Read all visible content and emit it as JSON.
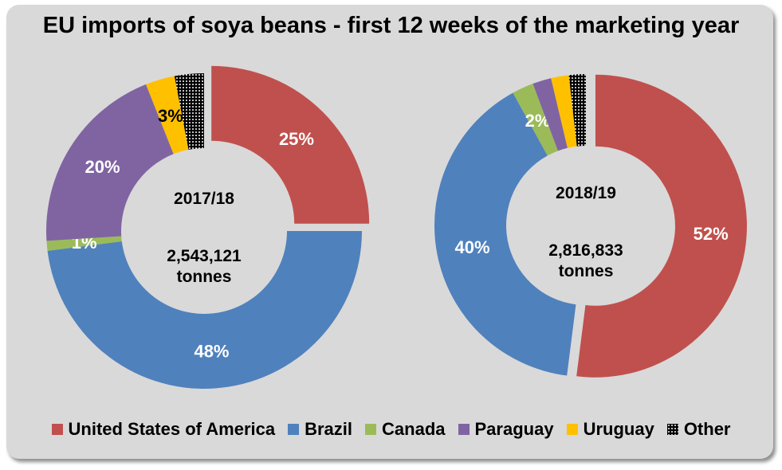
{
  "chart_data": {
    "type": "pie",
    "title": "EU imports of soya beans - first 12 weeks of the marketing year",
    "legend_position": "bottom",
    "categories": [
      "United States of America",
      "Brazil",
      "Canada",
      "Paraguay",
      "Uruguay",
      "Other"
    ],
    "colors": [
      "#c0504d",
      "#4f81bd",
      "#9bbb59",
      "#8064a2",
      "#ffc000",
      "#000000"
    ],
    "charts": [
      {
        "label": "2017/18",
        "total": "2,543,121",
        "unit": "tonnes",
        "values": [
          25,
          48,
          1,
          20,
          3,
          3
        ],
        "labels": [
          "25%",
          "48%",
          "1%",
          "20%",
          "3%",
          ""
        ],
        "label_colors": [
          "#fff",
          "#fff",
          "#fff",
          "#fff",
          "#000",
          "#fff"
        ],
        "exploded": "United States of America"
      },
      {
        "label": "2018/19",
        "total": "2,816,833",
        "unit": "tonnes",
        "values": [
          52,
          40,
          2.3,
          2.0,
          1.9,
          1.8
        ],
        "labels": [
          "52%",
          "40%",
          "2%",
          "",
          "",
          ""
        ],
        "label_colors": [
          "#fff",
          "#fff",
          "#fff",
          "#fff",
          "#fff",
          "#fff"
        ],
        "exploded": "United States of America"
      }
    ]
  }
}
